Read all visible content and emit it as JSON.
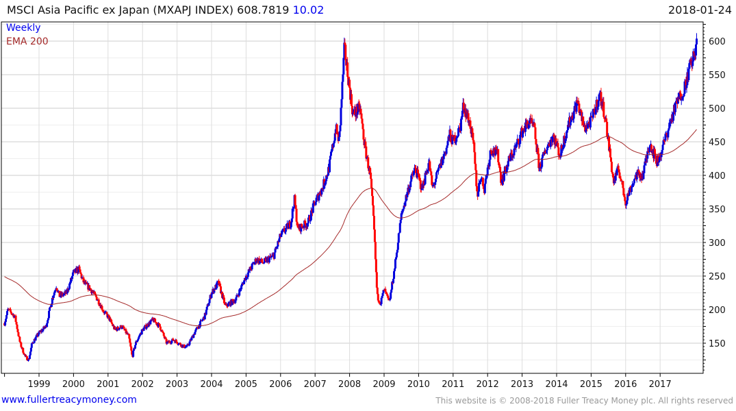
{
  "header": {
    "title": "MSCI Asia Pacific ex Japan (MXAPJ INDEX) 608.7819",
    "change": "10.02",
    "date": "2018-01-24"
  },
  "footer": {
    "site": "www.fullertreacymoney.com",
    "copyright": "This website is © 2008-2018 Fuller Treacy Money plc. All rights reserved"
  },
  "colors": {
    "up": "#0000dd",
    "down": "#ff0000",
    "ema": "#a52a2a",
    "grid": "#dddddd"
  },
  "chart_data": {
    "type": "line",
    "title": "MSCI Asia Pacific ex Japan (MXAPJ INDEX)",
    "legend": [
      "Weekly",
      "EMA 200"
    ],
    "legend_position": "top-left",
    "ylim": [
      110,
      625
    ],
    "xlim": [
      1997.95,
      2018.2
    ],
    "yticks": [
      150,
      200,
      250,
      300,
      350,
      400,
      450,
      500,
      550,
      600
    ],
    "xticks": [
      "1999",
      "2000",
      "2001",
      "2002",
      "2003",
      "2004",
      "2005",
      "2006",
      "2007",
      "2008",
      "2009",
      "2010",
      "2011",
      "2012",
      "2013",
      "2014",
      "2015",
      "2016",
      "2017"
    ],
    "ema_start": 250,
    "points": [
      [
        1998.0,
        180
      ],
      [
        1998.1,
        200
      ],
      [
        1998.3,
        190
      ],
      [
        1998.45,
        150
      ],
      [
        1998.6,
        130
      ],
      [
        1998.7,
        125
      ],
      [
        1998.8,
        150
      ],
      [
        1999.0,
        165
      ],
      [
        1999.2,
        175
      ],
      [
        1999.4,
        220
      ],
      [
        1999.5,
        235
      ],
      [
        1999.6,
        220
      ],
      [
        1999.8,
        225
      ],
      [
        2000.0,
        255
      ],
      [
        2000.15,
        260
      ],
      [
        2000.3,
        240
      ],
      [
        2000.5,
        230
      ],
      [
        2000.7,
        215
      ],
      [
        2000.9,
        195
      ],
      [
        2001.0,
        190
      ],
      [
        2001.2,
        170
      ],
      [
        2001.4,
        175
      ],
      [
        2001.6,
        160
      ],
      [
        2001.7,
        130
      ],
      [
        2001.8,
        150
      ],
      [
        2002.0,
        170
      ],
      [
        2002.3,
        185
      ],
      [
        2002.5,
        175
      ],
      [
        2002.7,
        150
      ],
      [
        2002.9,
        155
      ],
      [
        2003.2,
        145
      ],
      [
        2003.3,
        145
      ],
      [
        2003.5,
        165
      ],
      [
        2003.8,
        190
      ],
      [
        2004.0,
        225
      ],
      [
        2004.2,
        240
      ],
      [
        2004.4,
        205
      ],
      [
        2004.7,
        215
      ],
      [
        2005.0,
        250
      ],
      [
        2005.3,
        275
      ],
      [
        2005.5,
        270
      ],
      [
        2005.8,
        280
      ],
      [
        2006.0,
        310
      ],
      [
        2006.3,
        330
      ],
      [
        2006.4,
        365
      ],
      [
        2006.5,
        320
      ],
      [
        2006.8,
        330
      ],
      [
        2007.0,
        360
      ],
      [
        2007.2,
        380
      ],
      [
        2007.4,
        410
      ],
      [
        2007.6,
        470
      ],
      [
        2007.7,
        450
      ],
      [
        2007.85,
        590
      ],
      [
        2008.0,
        530
      ],
      [
        2008.1,
        490
      ],
      [
        2008.3,
        500
      ],
      [
        2008.45,
        440
      ],
      [
        2008.6,
        400
      ],
      [
        2008.7,
        330
      ],
      [
        2008.8,
        220
      ],
      [
        2008.9,
        210
      ],
      [
        2009.0,
        230
      ],
      [
        2009.15,
        210
      ],
      [
        2009.3,
        260
      ],
      [
        2009.5,
        340
      ],
      [
        2009.7,
        380
      ],
      [
        2009.9,
        410
      ],
      [
        2010.1,
        380
      ],
      [
        2010.3,
        420
      ],
      [
        2010.4,
        380
      ],
      [
        2010.6,
        410
      ],
      [
        2010.8,
        440
      ],
      [
        2010.9,
        460
      ],
      [
        2011.0,
        450
      ],
      [
        2011.2,
        470
      ],
      [
        2011.3,
        505
      ],
      [
        2011.5,
        475
      ],
      [
        2011.6,
        440
      ],
      [
        2011.7,
        370
      ],
      [
        2011.8,
        400
      ],
      [
        2011.9,
        380
      ],
      [
        2012.1,
        440
      ],
      [
        2012.3,
        430
      ],
      [
        2012.4,
        390
      ],
      [
        2012.6,
        420
      ],
      [
        2012.8,
        440
      ],
      [
        2013.0,
        465
      ],
      [
        2013.2,
        480
      ],
      [
        2013.35,
        470
      ],
      [
        2013.5,
        410
      ],
      [
        2013.7,
        440
      ],
      [
        2013.9,
        460
      ],
      [
        2014.1,
        430
      ],
      [
        2014.3,
        470
      ],
      [
        2014.5,
        495
      ],
      [
        2014.6,
        510
      ],
      [
        2014.8,
        470
      ],
      [
        2015.0,
        480
      ],
      [
        2015.25,
        520
      ],
      [
        2015.4,
        490
      ],
      [
        2015.5,
        450
      ],
      [
        2015.65,
        390
      ],
      [
        2015.8,
        410
      ],
      [
        2016.0,
        360
      ],
      [
        2016.1,
        375
      ],
      [
        2016.3,
        400
      ],
      [
        2016.5,
        400
      ],
      [
        2016.7,
        450
      ],
      [
        2016.9,
        420
      ],
      [
        2017.0,
        430
      ],
      [
        2017.3,
        480
      ],
      [
        2017.5,
        510
      ],
      [
        2017.7,
        530
      ],
      [
        2017.85,
        560
      ],
      [
        2018.0,
        580
      ],
      [
        2018.07,
        608.78
      ]
    ]
  }
}
